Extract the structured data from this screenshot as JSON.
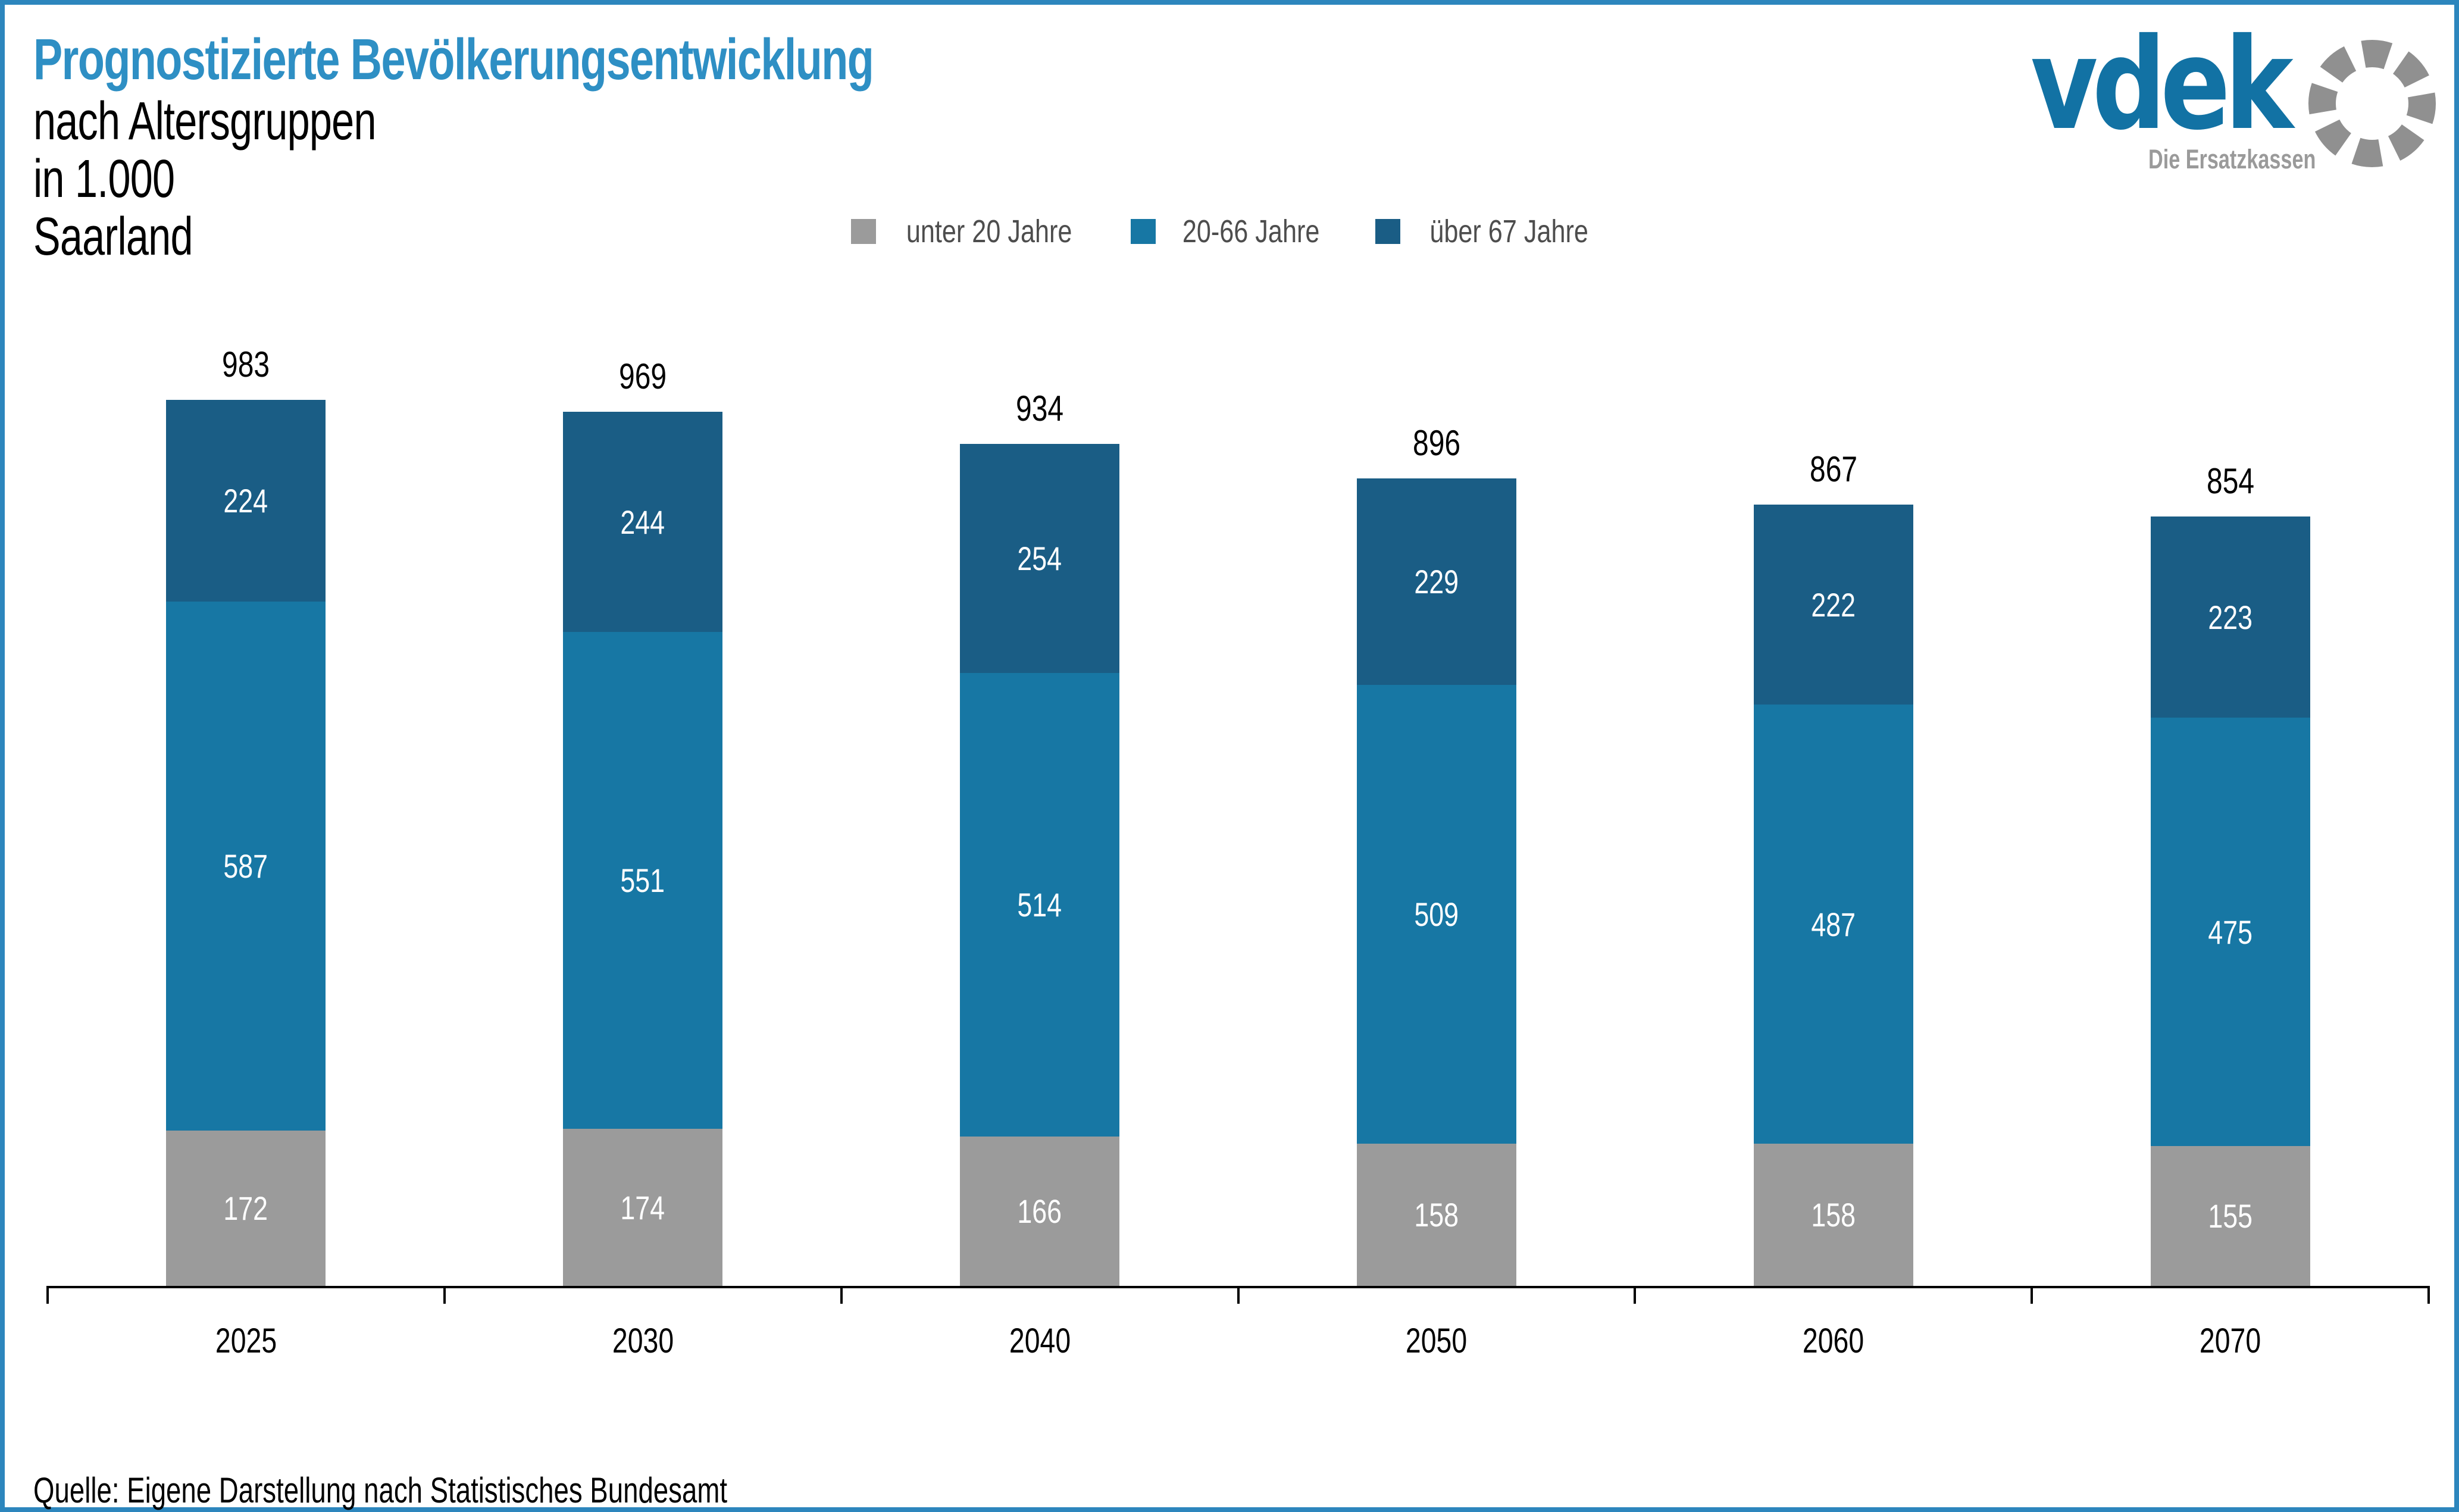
{
  "page": {
    "border_color": "#2d86bd",
    "background": "#ffffff"
  },
  "header": {
    "title": "Prognostizierte Bevölkerungsentwicklung",
    "title_color": "#2e8fc4",
    "subtitle_lines": [
      "nach Altersgruppen",
      "in 1.000",
      "Saarland"
    ]
  },
  "legend": {
    "text_color": "#4d4d4d",
    "items": [
      {
        "label": "unter 20 Jahre",
        "color": "#9b9b9b"
      },
      {
        "label": "20-66 Jahre",
        "color": "#1777a4"
      },
      {
        "label": "über 67 Jahre",
        "color": "#1a5d85"
      }
    ]
  },
  "logo": {
    "brand": "vdek",
    "tagline": "Die Ersatzkassen",
    "brand_color": "#1272a4",
    "ring_color": "#909090",
    "ring_icon": "dotted-ring-icon"
  },
  "chart_data": {
    "type": "bar",
    "stacked": true,
    "title": "Prognostizierte Bevölkerungsentwicklung nach Altersgruppen in 1.000, Saarland",
    "categories": [
      "2025",
      "2030",
      "2040",
      "2050",
      "2060",
      "2070"
    ],
    "series": [
      {
        "name": "unter 20 Jahre",
        "color": "#9b9b9b",
        "label_color": "#ffffff",
        "values": [
          172,
          174,
          166,
          158,
          158,
          155
        ]
      },
      {
        "name": "20-66 Jahre",
        "color": "#1777a4",
        "label_color": "#ffffff",
        "values": [
          587,
          551,
          514,
          509,
          487,
          475
        ]
      },
      {
        "name": "über 67 Jahre",
        "color": "#1a5d85",
        "label_color": "#ffffff",
        "values": [
          224,
          244,
          254,
          229,
          222,
          223
        ]
      }
    ],
    "totals": [
      983,
      969,
      934,
      896,
      867,
      854
    ],
    "xlabel": "",
    "ylabel": "",
    "ylim": [
      0,
      1000
    ],
    "grid": false,
    "legend_position": "top-center",
    "value_labels": "inside-segments-and-totals-above",
    "axis_color": "#000000"
  },
  "source": {
    "text": "Quelle: Eigene Darstellung nach Statistisches Bundesamt"
  }
}
